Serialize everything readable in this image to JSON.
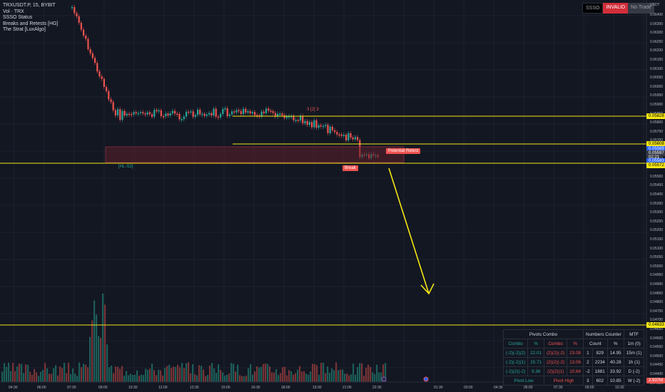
{
  "legend": {
    "symbol": "TRXUSDT.P, 15, BYBIT",
    "vol": "Vol · TRX",
    "ind1": "SSSO Status",
    "ind2": "Breaks and Retests [HG]",
    "ind3": "The Strat [LuxAlgo]"
  },
  "status": {
    "a": "SSSO",
    "b": "INVALID",
    "c": "No Trade"
  },
  "currency": "USDT",
  "price_labels": [
    "0.06400",
    "0.06350",
    "0.06300",
    "0.06250",
    "0.06200",
    "0.06150",
    "0.06100",
    "0.06050",
    "0.06000",
    "0.05950",
    "0.05900",
    "0.05850",
    "0.05800",
    "0.05750",
    "0.05700",
    "0.05650",
    "0.05600",
    "0.05550",
    "0.05500",
    "0.05450",
    "0.05400",
    "0.05350",
    "0.05300",
    "0.05250",
    "0.05200",
    "0.05150",
    "0.05100",
    "0.05050",
    "0.05000",
    "0.04950",
    "0.04900",
    "0.04850",
    "0.04800",
    "0.04750",
    "0.04700",
    "0.04650",
    "0.04600",
    "0.04550",
    "0.04500",
    "0.04450",
    "0.04400",
    "0.04350"
  ],
  "price_tags": {
    "t1": "0.05828",
    "t2": "0.05608",
    "t3a": "0.05589",
    "t3b": "0.05597",
    "t3c": "02:21",
    "t3d": "0.05583",
    "t4": "0.05572",
    "t5": "0.04633",
    "t6": "2.937M"
  },
  "time_labels": [
    "04:30",
    "06:00",
    "07:30",
    "09:00",
    "10:30",
    "12:00",
    "13:30",
    "15:00",
    "16:30",
    "18:00",
    "19:30",
    "21:00",
    "22:30",
    "01:30",
    "03:00",
    "04:30",
    "06:00",
    "07:30",
    "09:00",
    "10:30"
  ],
  "annotations": {
    "potential_retest": "Potential Retest",
    "break": "Break",
    "hl": "[HL-S2]",
    "high_marker": "3 [2] 3",
    "strat_label": "2"
  },
  "table": {
    "h1": "Pivots Combo",
    "h2": "Numbers Counter",
    "h3": "MTF",
    "c1": "Combo",
    "c2": "%",
    "c3": "Combo",
    "c4": "%",
    "c5": "Count",
    "c6": "%",
    "c7": "1m (0)",
    "rows": [
      {
        "a": "(-2)(-2)(2)",
        "b": "22.01",
        "c": "(2)(2)(-2)",
        "d": "23.08",
        "e": "1",
        "f": "829",
        "g": "14.95",
        "h": "15m (1)"
      },
      {
        "a": "(-2)(-2)(1)",
        "b": "15.71",
        "c": "(2)(2)(-2)",
        "d": "13.06",
        "e": "2",
        "f": "2234",
        "g": "40.28",
        "h": "1h (1)"
      },
      {
        "a": "(-2)(2)(-2)",
        "b": "9.36",
        "c": "(2)(2)(1)",
        "d": "10.84",
        "e": "-2",
        "f": "1881",
        "g": "33.92",
        "h": "D (-2)"
      },
      {
        "a": "Pivot Low",
        "b": "",
        "c": "Pivot High",
        "d": "",
        "e": "3",
        "f": "602",
        "g": "10.85",
        "h": "W (-2)"
      }
    ]
  },
  "colors": {
    "up": "#26a69a",
    "down": "#ef5350",
    "level": "#f5e615",
    "bg": "#131722"
  }
}
